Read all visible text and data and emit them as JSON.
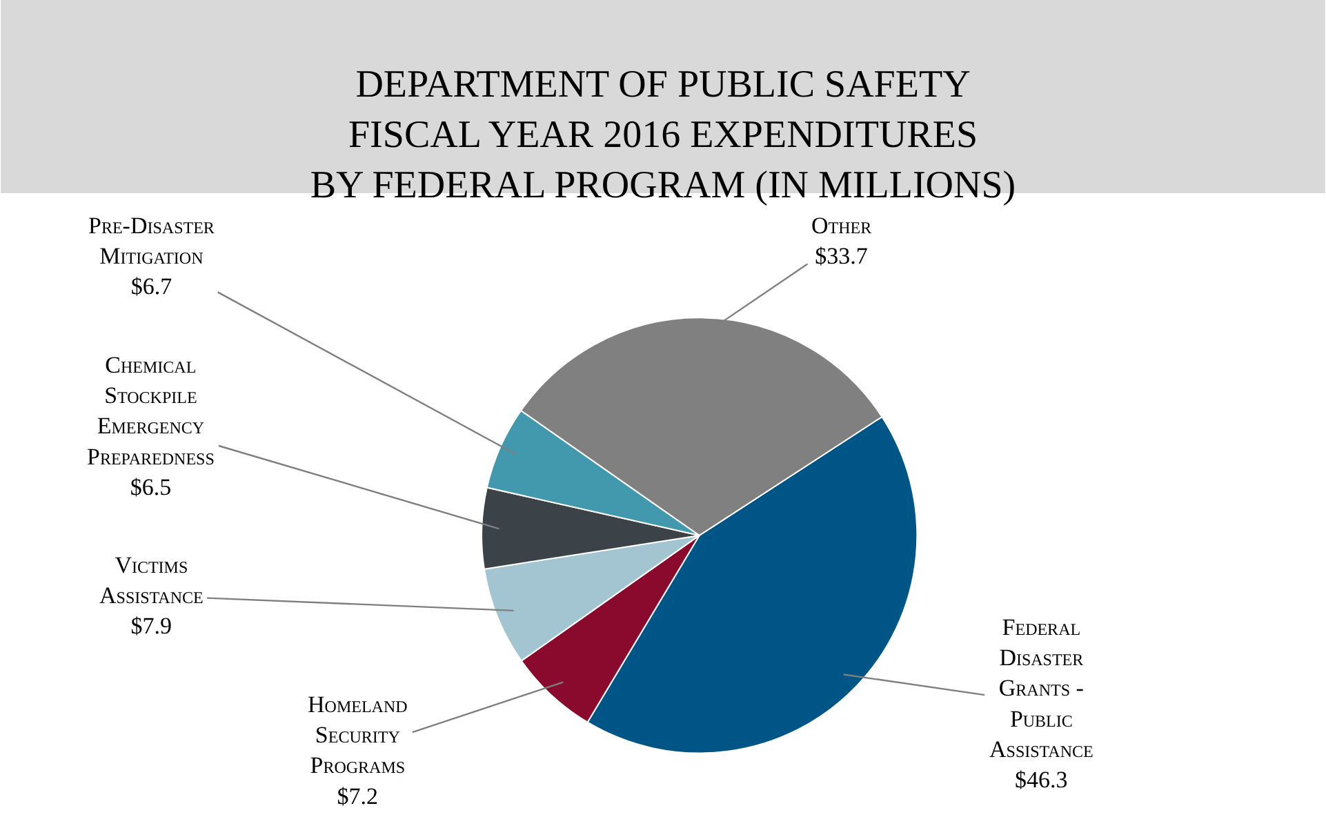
{
  "chart_data": {
    "type": "pie",
    "title": "DEPARTMENT OF PUBLIC SAFETY\nFISCAL YEAR 2016 EXPENDITURES\nBY FEDERAL PROGRAM (IN MILLIONS)",
    "categories": [
      "Federal Disaster Grants - Public Assistance",
      "Homeland Security Programs",
      "Victims Assistance",
      "Chemical Stockpile Emergency Preparedness",
      "Pre-Disaster Mitigation",
      "Other"
    ],
    "values": [
      46.3,
      7.2,
      7.9,
      6.5,
      6.7,
      33.7
    ],
    "value_labels": [
      "$46.3",
      "$7.2",
      "$7.9",
      "$6.5",
      "$6.7",
      "$33.7"
    ],
    "colors": [
      "#005587",
      "#8a0a2e",
      "#a3c4d1",
      "#3b4248",
      "#4299ae",
      "#808080"
    ],
    "legend": false
  }
}
